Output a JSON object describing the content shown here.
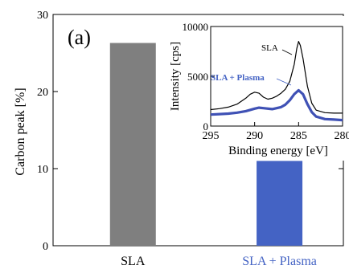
{
  "chart_data": [
    {
      "type": "bar",
      "panel_label": "(a)",
      "categories": [
        "SLA",
        "SLA + Plasma"
      ],
      "values": [
        26.3,
        11.0
      ],
      "colors": [
        "#7f7f7f",
        "#4463c4"
      ],
      "ylabel": "Carbon peak [%]",
      "ylim": [
        0,
        30
      ],
      "yticks": [
        "0",
        "10",
        "20",
        "30"
      ],
      "grid": false
    },
    {
      "type": "line",
      "xlabel": "Binding energy [eV]",
      "ylabel": "Intensity [cps]",
      "xlim": [
        295,
        280
      ],
      "ylim": [
        0,
        10000
      ],
      "xticks": [
        "295",
        "290",
        "285",
        "280"
      ],
      "yticks": [
        "0",
        "5000",
        "10000"
      ],
      "series": [
        {
          "name": "SLA",
          "color": "#000000",
          "x": [
            295,
            294,
            293,
            292,
            291,
            290.5,
            290,
            289.5,
            289,
            288.5,
            288,
            287.5,
            287,
            286.5,
            286,
            285.5,
            285.2,
            285,
            284.8,
            284.5,
            284,
            283.5,
            283,
            282,
            281,
            280
          ],
          "y": [
            1650,
            1750,
            1900,
            2200,
            2800,
            3200,
            3400,
            3300,
            2900,
            2700,
            2800,
            3000,
            3300,
            3700,
            4500,
            6200,
            7800,
            8500,
            8100,
            6800,
            4000,
            2300,
            1600,
            1350,
            1300,
            1300
          ]
        },
        {
          "name": "SLA + Plasma",
          "color": "#3f51b5",
          "x": [
            295,
            294,
            293,
            292,
            291,
            290,
            289.5,
            289,
            288,
            287,
            286.5,
            286,
            285.5,
            285,
            284.5,
            284,
            283.5,
            283,
            282,
            281,
            280
          ],
          "y": [
            1150,
            1200,
            1250,
            1350,
            1500,
            1750,
            1850,
            1800,
            1700,
            1900,
            2150,
            2600,
            3200,
            3600,
            3200,
            2200,
            1400,
            950,
            700,
            650,
            600
          ]
        }
      ],
      "annotations": [
        "SLA",
        "SLA + Plasma"
      ]
    }
  ]
}
